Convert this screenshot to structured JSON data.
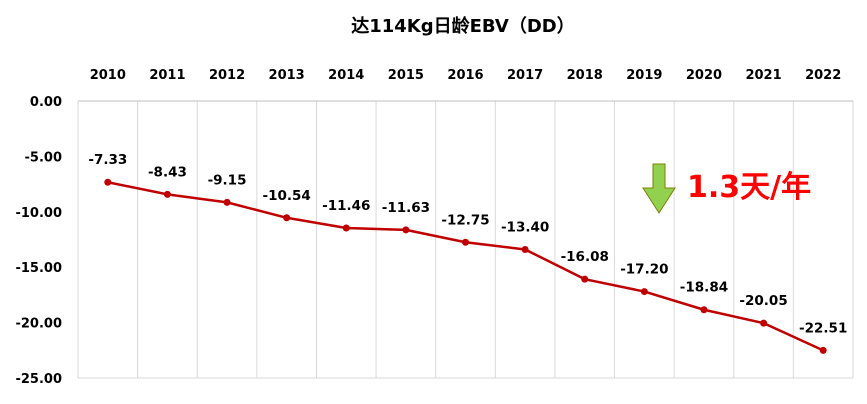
{
  "chart_data": {
    "type": "line",
    "title": "达114Kg日龄EBV（DD）",
    "xlabel": "",
    "ylabel": "",
    "categories": [
      "2010",
      "2011",
      "2012",
      "2013",
      "2014",
      "2015",
      "2016",
      "2017",
      "2018",
      "2019",
      "2020",
      "2021",
      "2022"
    ],
    "series": [
      {
        "values": [
          -7.33,
          -8.43,
          -9.15,
          -10.54,
          -11.46,
          -11.63,
          -12.75,
          -13.4,
          -16.08,
          -17.2,
          -18.84,
          -20.05,
          -22.51
        ],
        "labels": [
          "-7.33",
          "-8.43",
          "-9.15",
          "-10.54",
          "-11.46",
          "-11.63",
          "-12.75",
          "-13.40",
          "-16.08",
          "-17.20",
          "-18.84",
          "-20.05",
          "-22.51"
        ],
        "color": "#c00000"
      }
    ],
    "ylim": [
      -25,
      0
    ],
    "y_ticks": [
      0,
      -5,
      -10,
      -15,
      -20,
      -25
    ],
    "y_tick_labels": [
      "0.00",
      "-5.00",
      "-10.00",
      "-15.00",
      "-20.00",
      "-25.00"
    ],
    "x_axis_position": "top",
    "grid": "vertical",
    "grid_color": "#d9d9d9",
    "annotation": {
      "text": "1.3天/年",
      "text_color": "#ff0000",
      "arrow": "down",
      "arrow_fill": "#92d050",
      "arrow_stroke": "#7f7f00"
    }
  }
}
